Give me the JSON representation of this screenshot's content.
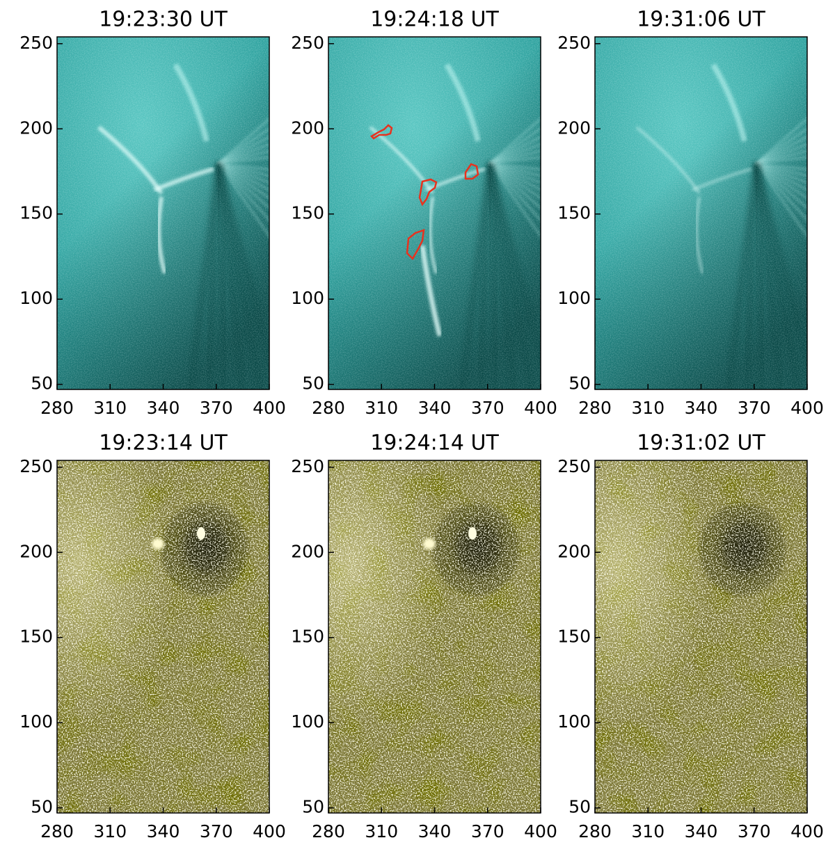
{
  "chart_data": [
    {
      "type": "image",
      "title": "19:23:30 UT",
      "color": "#2a9e9b",
      "xlim": [
        280,
        400
      ],
      "ylim": [
        47,
        254
      ],
      "xticks": [
        280,
        310,
        340,
        370,
        400
      ],
      "yticks": [
        50,
        100,
        150,
        200,
        250
      ]
    },
    {
      "type": "image",
      "title": "19:24:18 UT",
      "color": "#2a9e9b",
      "xlim": [
        280,
        400
      ],
      "ylim": [
        47,
        254
      ],
      "xticks": [
        280,
        310,
        340,
        370,
        400
      ],
      "yticks": [
        50,
        100,
        150,
        200,
        250
      ]
    },
    {
      "type": "image",
      "title": "19:31:06 UT",
      "color": "#2a9e9b",
      "xlim": [
        280,
        400
      ],
      "ylim": [
        47,
        254
      ],
      "xticks": [
        280,
        310,
        340,
        370,
        400
      ],
      "yticks": [
        50,
        100,
        150,
        200,
        250
      ]
    },
    {
      "type": "image",
      "title": "19:23:14 UT",
      "color": "#7b7634",
      "xlim": [
        280,
        400
      ],
      "ylim": [
        47,
        254
      ],
      "xticks": [
        280,
        310,
        340,
        370,
        400
      ],
      "yticks": [
        50,
        100,
        150,
        200,
        250
      ]
    },
    {
      "type": "image",
      "title": "19:24:14 UT",
      "color": "#7b7634",
      "xlim": [
        280,
        400
      ],
      "ylim": [
        47,
        254
      ],
      "xticks": [
        280,
        310,
        340,
        370,
        400
      ],
      "yticks": [
        50,
        100,
        150,
        200,
        250
      ]
    },
    {
      "type": "image",
      "title": "19:31:02 UT",
      "color": "#7b7634",
      "xlim": [
        280,
        400
      ],
      "ylim": [
        47,
        254
      ],
      "xticks": [
        280,
        310,
        340,
        370,
        400
      ],
      "yticks": [
        50,
        100,
        150,
        200,
        250
      ]
    }
  ]
}
